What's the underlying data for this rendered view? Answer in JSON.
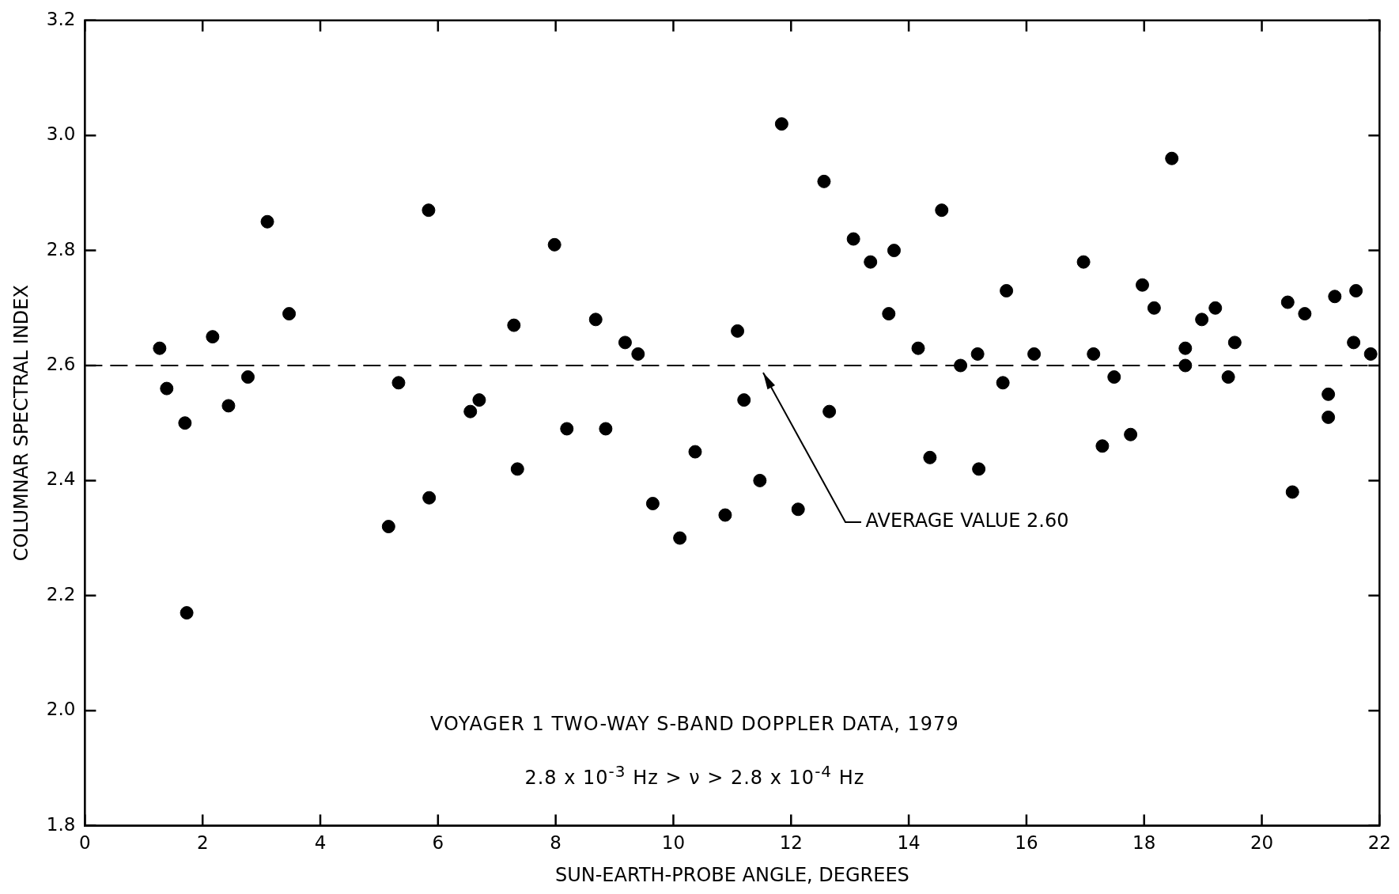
{
  "chart_data": {
    "type": "scatter",
    "xlabel": "SUN-EARTH-PROBE ANGLE, DEGREES",
    "ylabel": "COLUMNAR SPECTRAL INDEX",
    "x": [
      1.27,
      1.39,
      1.7,
      1.73,
      2.17,
      2.44,
      2.77,
      3.1,
      3.47,
      5.16,
      5.33,
      5.84,
      5.85,
      6.55,
      6.7,
      7.29,
      7.35,
      7.98,
      8.19,
      8.68,
      8.85,
      9.18,
      9.4,
      9.65,
      10.11,
      10.37,
      10.88,
      11.09,
      11.2,
      11.47,
      11.84,
      12.12,
      12.56,
      12.65,
      13.06,
      13.35,
      13.66,
      13.75,
      14.16,
      14.36,
      14.56,
      14.88,
      15.17,
      15.19,
      15.6,
      15.66,
      16.13,
      16.97,
      17.14,
      17.29,
      17.49,
      17.77,
      17.97,
      18.17,
      18.47,
      18.7,
      18.7,
      18.98,
      19.21,
      19.43,
      19.54,
      20.44,
      20.52,
      20.73,
      21.13,
      21.13,
      21.24,
      21.56,
      21.6,
      21.85
    ],
    "values": [
      2.63,
      2.56,
      2.5,
      2.17,
      2.65,
      2.53,
      2.58,
      2.85,
      2.69,
      2.32,
      2.57,
      2.87,
      2.37,
      2.52,
      2.54,
      2.67,
      2.42,
      2.81,
      2.49,
      2.68,
      2.49,
      2.64,
      2.62,
      2.36,
      2.3,
      2.45,
      2.34,
      2.66,
      2.54,
      2.4,
      3.02,
      2.35,
      2.92,
      2.52,
      2.82,
      2.78,
      2.69,
      2.8,
      2.63,
      2.44,
      2.87,
      2.6,
      2.62,
      2.42,
      2.57,
      2.73,
      2.62,
      2.78,
      2.62,
      2.46,
      2.58,
      2.48,
      2.74,
      2.7,
      2.96,
      2.63,
      2.6,
      2.68,
      2.7,
      2.58,
      2.64,
      2.71,
      2.38,
      2.69,
      2.55,
      2.51,
      2.72,
      2.64,
      2.73,
      2.62
    ],
    "color": "#000000",
    "marker": "circle",
    "xlim": [
      0,
      22
    ],
    "xticks": [
      0,
      2,
      4,
      6,
      8,
      10,
      12,
      14,
      16,
      18,
      20,
      22
    ],
    "ylim": [
      1.8,
      3.2
    ],
    "yticks": [
      1.8,
      {
        "value": 2,
        "label": "2.0"
      },
      2.2,
      2.4,
      2.6,
      2.8,
      {
        "value": 3,
        "label": "3.0"
      },
      3.2
    ],
    "grid": false,
    "legend": false,
    "ref_lines": [
      {
        "axis": "y",
        "value": 2.6,
        "label": "AVERAGE VALUE 2.60",
        "color": "#000000",
        "line_style": "dashed"
      }
    ],
    "annotations": [
      "VOYAGER 1 TWO-WAY S-BAND DOPPLER DATA, 1979",
      "2.8 x 10$^{-3}$ Hz > ν > 2.8 x 10$^{-4}$ Hz"
    ]
  }
}
